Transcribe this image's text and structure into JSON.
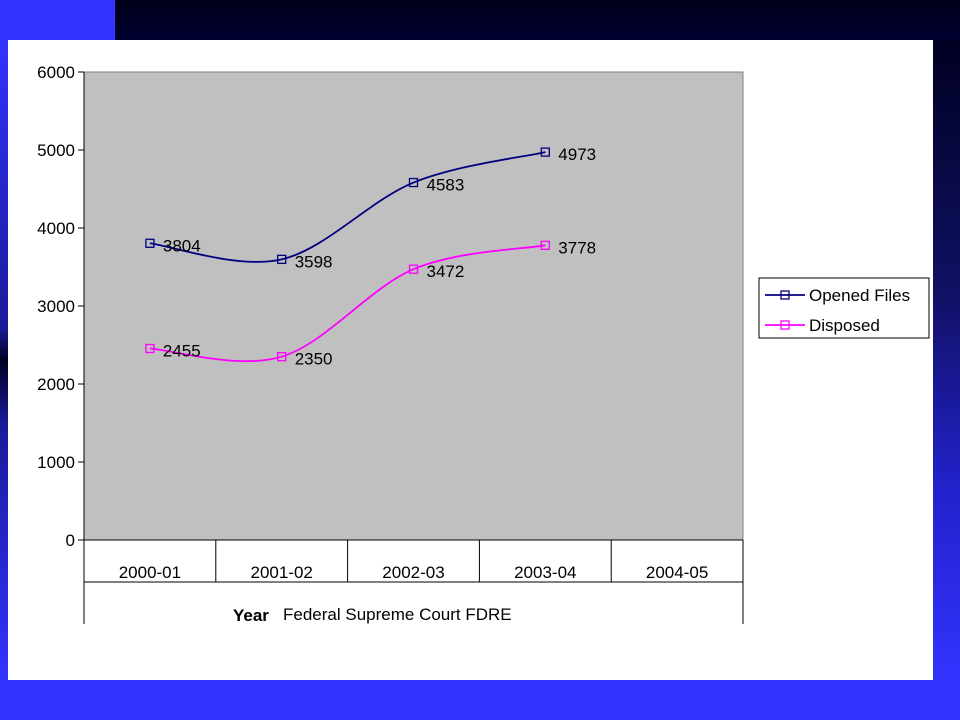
{
  "colors": {
    "background": "#3333ff",
    "plot_area": "#c0c0c0",
    "opened_files": "#000080",
    "disposed": "#ff00ff"
  },
  "chart_data": {
    "type": "line",
    "smoothed": true,
    "categories": [
      "2000-01",
      "2001-02",
      "2002-03",
      "2003-04",
      "2004-05"
    ],
    "series": [
      {
        "name": "Opened Files",
        "values": [
          3804,
          3598,
          4583,
          4973,
          null
        ],
        "color": "#000080",
        "marker": "square"
      },
      {
        "name": "Disposed",
        "values": [
          2455,
          2350,
          3472,
          3778,
          null
        ],
        "color": "#ff00ff",
        "marker": "square"
      }
    ],
    "xlabel_prefix": "Year",
    "xlabel": "Federal Supreme Court FDRE",
    "ylim": [
      0,
      6000
    ],
    "yticks": [
      0,
      1000,
      2000,
      3000,
      4000,
      5000,
      6000
    ],
    "grid": false,
    "legend_position": "right",
    "data_labels": true
  }
}
